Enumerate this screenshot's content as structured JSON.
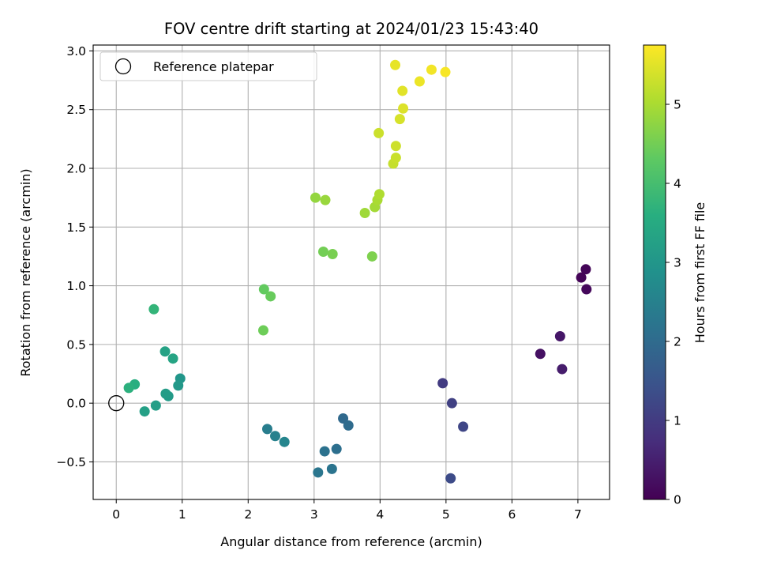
{
  "chart_data": {
    "type": "scatter",
    "title": "FOV centre drift starting at 2024/01/23 15:43:40",
    "xlabel": "Angular distance from reference (arcmin)",
    "ylabel": "Rotation from reference (arcmin)",
    "xlim": [
      -0.35,
      7.48
    ],
    "ylim": [
      -0.82,
      3.05
    ],
    "xticks": [
      0,
      1,
      2,
      3,
      4,
      5,
      6,
      7
    ],
    "xtick_labels": [
      "0",
      "1",
      "2",
      "3",
      "4",
      "5",
      "6",
      "7"
    ],
    "yticks": [
      -0.5,
      0.0,
      0.5,
      1.0,
      1.5,
      2.0,
      2.5,
      3.0
    ],
    "ytick_labels": [
      "−0.5",
      "0.0",
      "0.5",
      "1.0",
      "1.5",
      "2.0",
      "2.5",
      "3.0"
    ],
    "grid": true,
    "legend": {
      "location": "upper-left",
      "entries": [
        "Reference platepar"
      ]
    },
    "reference_point": {
      "x": 0,
      "y": 0
    },
    "colorbar": {
      "label": "Hours from first FF file",
      "colormap": "viridis",
      "range": [
        0,
        5.75
      ],
      "ticks": [
        0,
        1,
        2,
        3,
        4,
        5
      ],
      "tick_labels": [
        "0",
        "1",
        "2",
        "3",
        "4",
        "5"
      ]
    },
    "points": [
      {
        "x": 7.05,
        "y": 1.07,
        "hours": 0.05
      },
      {
        "x": 7.12,
        "y": 1.14,
        "hours": 0.08
      },
      {
        "x": 7.13,
        "y": 0.97,
        "hours": 0.12
      },
      {
        "x": 6.43,
        "y": 0.42,
        "hours": 0.25
      },
      {
        "x": 6.73,
        "y": 0.57,
        "hours": 0.35
      },
      {
        "x": 6.76,
        "y": 0.29,
        "hours": 0.45
      },
      {
        "x": 4.95,
        "y": 0.17,
        "hours": 1.0
      },
      {
        "x": 5.09,
        "y": 0.0,
        "hours": 1.1
      },
      {
        "x": 5.26,
        "y": -0.2,
        "hours": 1.2
      },
      {
        "x": 5.07,
        "y": -0.64,
        "hours": 1.3
      },
      {
        "x": 3.44,
        "y": -0.13,
        "hours": 1.95
      },
      {
        "x": 3.52,
        "y": -0.19,
        "hours": 2.0
      },
      {
        "x": 3.34,
        "y": -0.39,
        "hours": 2.1
      },
      {
        "x": 3.16,
        "y": -0.41,
        "hours": 2.15
      },
      {
        "x": 3.27,
        "y": -0.56,
        "hours": 2.2
      },
      {
        "x": 3.06,
        "y": -0.59,
        "hours": 2.25
      },
      {
        "x": 2.29,
        "y": -0.22,
        "hours": 2.4
      },
      {
        "x": 2.41,
        "y": -0.28,
        "hours": 2.5
      },
      {
        "x": 2.55,
        "y": -0.33,
        "hours": 2.6
      },
      {
        "x": 0.97,
        "y": 0.21,
        "hours": 3.0
      },
      {
        "x": 0.94,
        "y": 0.15,
        "hours": 3.05
      },
      {
        "x": 0.79,
        "y": 0.06,
        "hours": 3.1
      },
      {
        "x": 0.75,
        "y": 0.08,
        "hours": 3.15
      },
      {
        "x": 0.6,
        "y": -0.02,
        "hours": 3.2
      },
      {
        "x": 0.43,
        "y": -0.07,
        "hours": 3.25
      },
      {
        "x": 0.74,
        "y": 0.44,
        "hours": 3.3
      },
      {
        "x": 0.86,
        "y": 0.38,
        "hours": 3.35
      },
      {
        "x": 0.28,
        "y": 0.16,
        "hours": 3.6
      },
      {
        "x": 0.19,
        "y": 0.13,
        "hours": 3.65
      },
      {
        "x": 0.57,
        "y": 0.8,
        "hours": 3.75
      },
      {
        "x": 2.24,
        "y": 0.97,
        "hours": 4.35
      },
      {
        "x": 2.34,
        "y": 0.91,
        "hours": 4.4
      },
      {
        "x": 2.23,
        "y": 0.62,
        "hours": 4.45
      },
      {
        "x": 3.14,
        "y": 1.29,
        "hours": 4.5
      },
      {
        "x": 3.28,
        "y": 1.27,
        "hours": 4.55
      },
      {
        "x": 3.88,
        "y": 1.25,
        "hours": 4.6
      },
      {
        "x": 3.02,
        "y": 1.75,
        "hours": 4.8
      },
      {
        "x": 3.17,
        "y": 1.73,
        "hours": 4.85
      },
      {
        "x": 3.77,
        "y": 1.62,
        "hours": 4.9
      },
      {
        "x": 3.92,
        "y": 1.67,
        "hours": 4.95
      },
      {
        "x": 3.96,
        "y": 1.73,
        "hours": 5.0
      },
      {
        "x": 3.99,
        "y": 1.78,
        "hours": 5.05
      },
      {
        "x": 3.98,
        "y": 2.3,
        "hours": 5.3
      },
      {
        "x": 4.2,
        "y": 2.04,
        "hours": 5.25
      },
      {
        "x": 4.24,
        "y": 2.09,
        "hours": 5.28
      },
      {
        "x": 4.24,
        "y": 2.19,
        "hours": 5.32
      },
      {
        "x": 4.3,
        "y": 2.42,
        "hours": 5.4
      },
      {
        "x": 4.35,
        "y": 2.51,
        "hours": 5.45
      },
      {
        "x": 4.34,
        "y": 2.66,
        "hours": 5.5
      },
      {
        "x": 4.23,
        "y": 2.88,
        "hours": 5.55
      },
      {
        "x": 4.6,
        "y": 2.74,
        "hours": 5.6
      },
      {
        "x": 4.78,
        "y": 2.84,
        "hours": 5.65
      },
      {
        "x": 4.99,
        "y": 2.82,
        "hours": 5.7
      }
    ]
  }
}
